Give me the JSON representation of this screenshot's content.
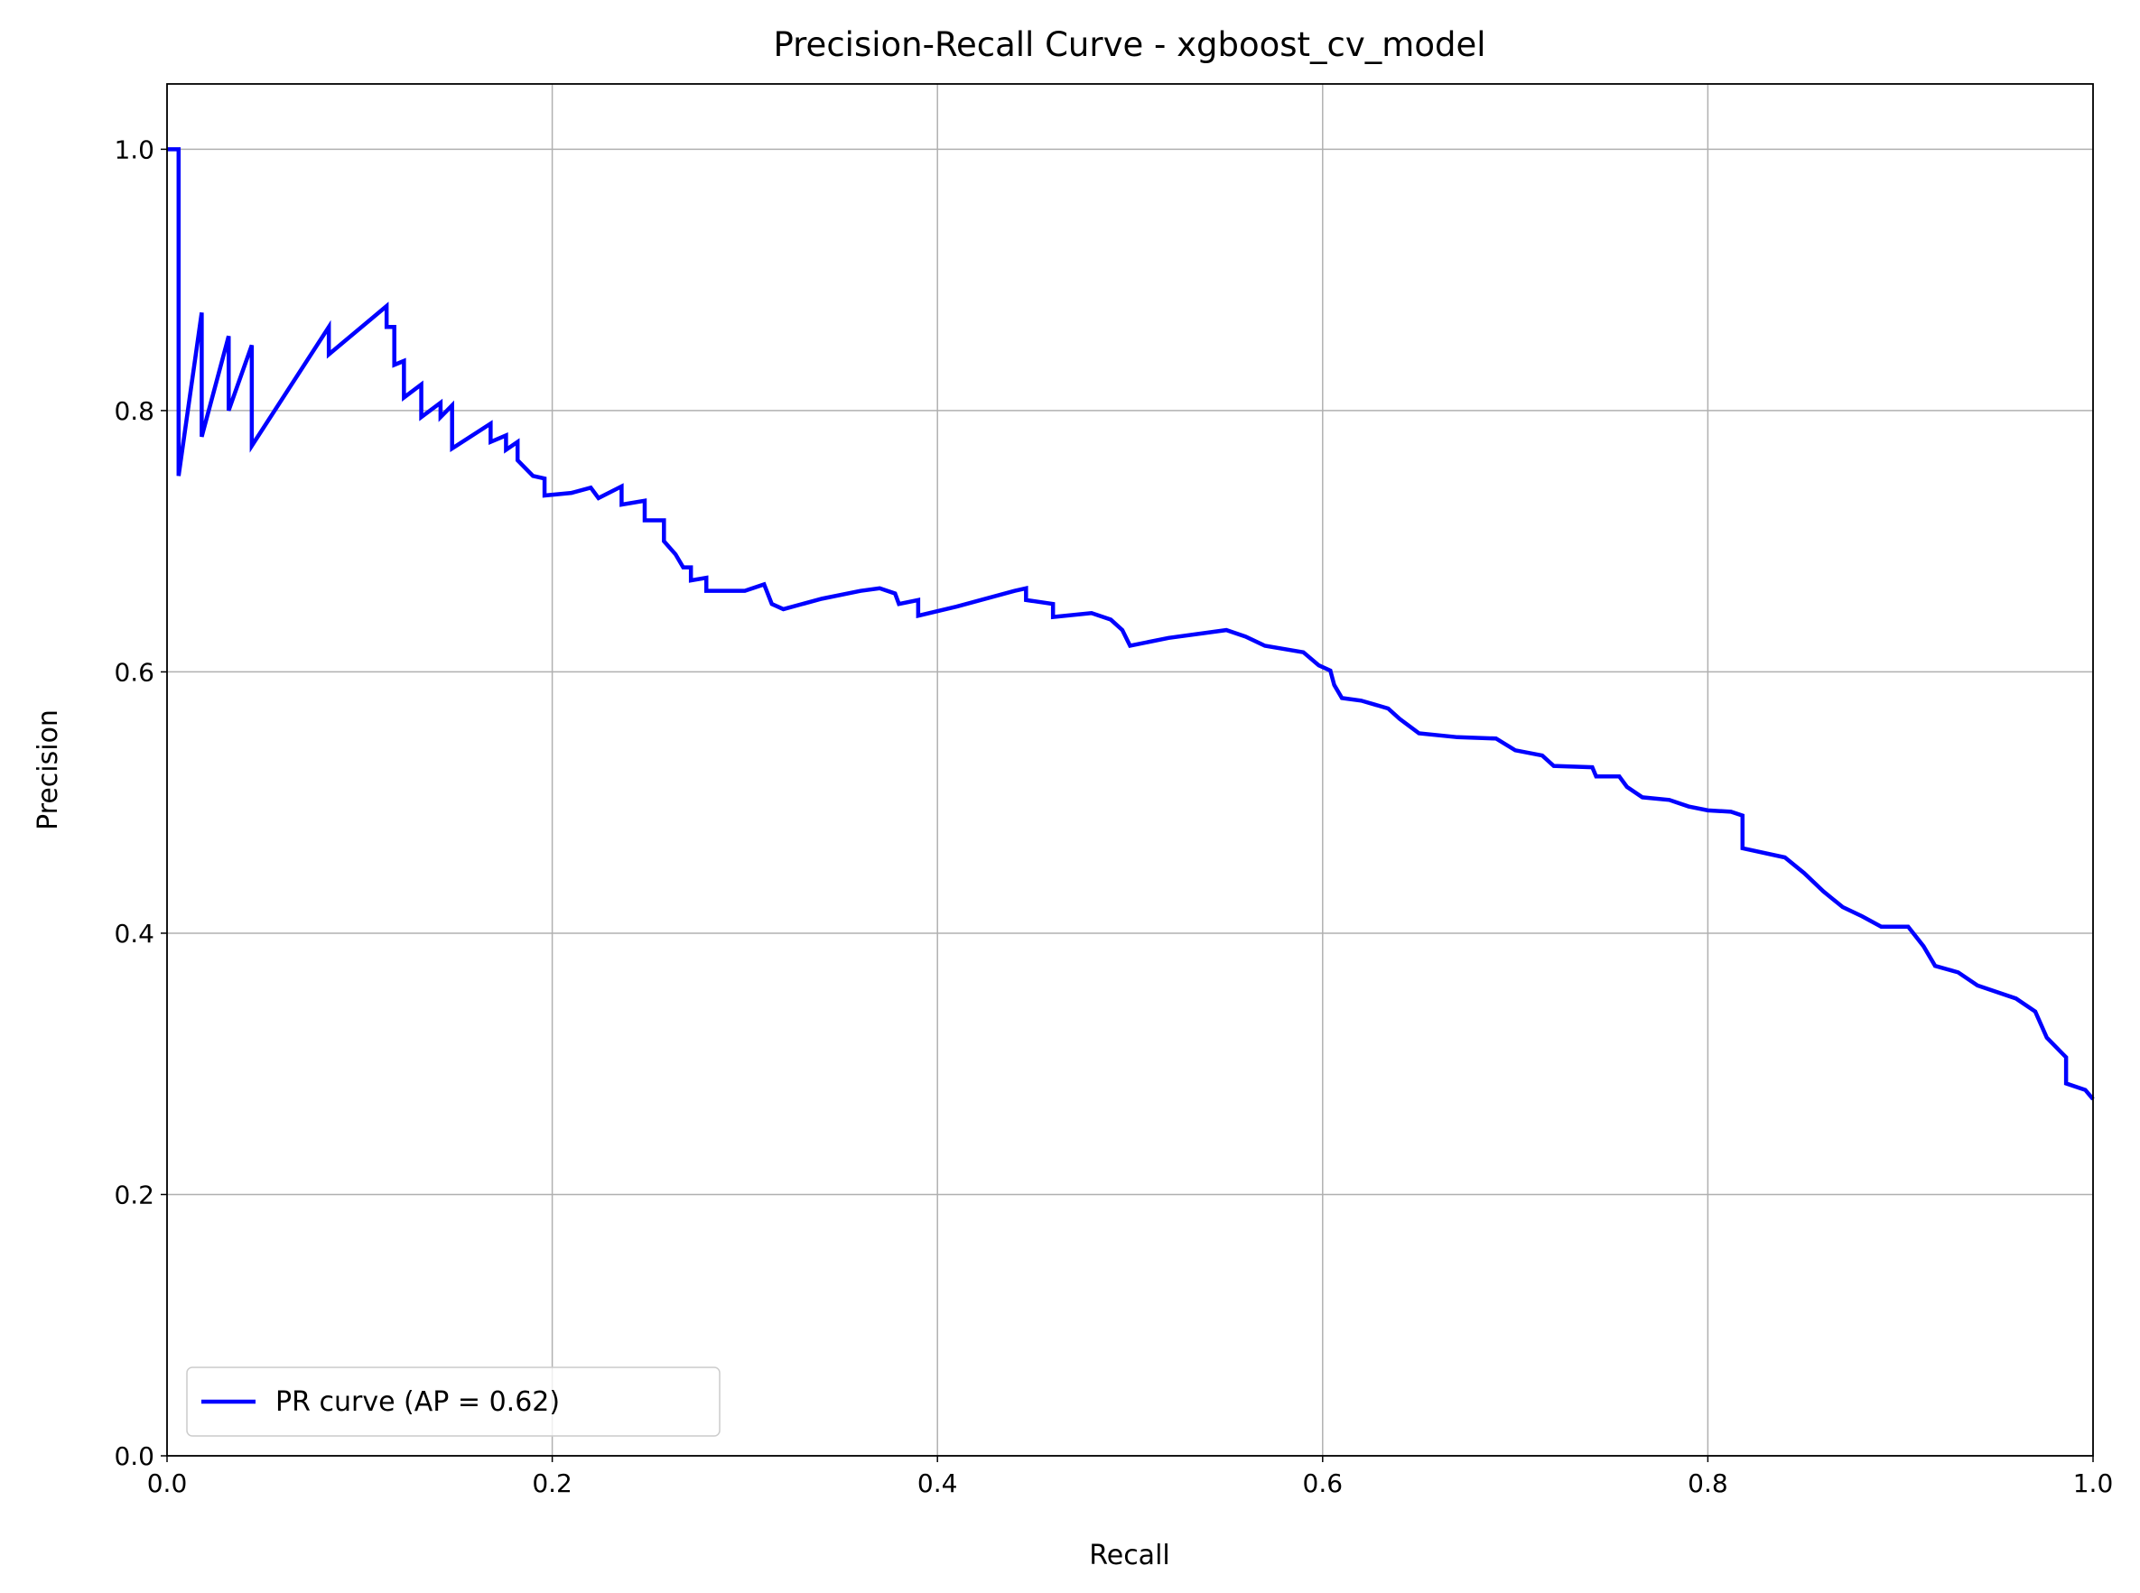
{
  "chart_data": {
    "type": "line",
    "title": "Precision-Recall Curve - xgboost_cv_model",
    "x_label": "Recall",
    "y_label": "Precision",
    "xlim": [
      0,
      1
    ],
    "ylim": [
      0,
      1.05
    ],
    "xticks": [
      {
        "value": 0,
        "label": "0.0"
      },
      0.2,
      0.4,
      0.6,
      0.8,
      {
        "value": 1,
        "label": "1.0"
      }
    ],
    "yticks": [
      {
        "value": 0,
        "label": "0.0"
      },
      0.2,
      0.4,
      0.6,
      0.8,
      {
        "value": 1,
        "label": "1.0"
      }
    ],
    "grid": true,
    "legend_position": "lower left",
    "x": [
      0,
      0.006,
      0.006,
      0.018,
      0.018,
      0.032,
      0.032,
      0.044,
      0.044,
      0.084,
      0.084,
      0.114,
      0.114,
      0.118,
      0.118,
      0.123,
      0.123,
      0.132,
      0.132,
      0.142,
      0.142,
      0.148,
      0.148,
      0.168,
      0.168,
      0.176,
      0.176,
      0.182,
      0.182,
      0.19,
      0.196,
      0.196,
      0.21,
      0.22,
      0.224,
      0.236,
      0.236,
      0.248,
      0.248,
      0.258,
      0.258,
      0.264,
      0.268,
      0.272,
      0.272,
      0.28,
      0.28,
      0.3,
      0.31,
      0.314,
      0.32,
      0.34,
      0.36,
      0.37,
      0.378,
      0.38,
      0.39,
      0.39,
      0.41,
      0.44,
      0.446,
      0.446,
      0.46,
      0.46,
      0.48,
      0.49,
      0.496,
      0.5,
      0.52,
      0.55,
      0.56,
      0.57,
      0.59,
      0.598,
      0.604,
      0.606,
      0.61,
      0.62,
      0.634,
      0.64,
      0.65,
      0.67,
      0.69,
      0.7,
      0.714,
      0.72,
      0.74,
      0.742,
      0.754,
      0.758,
      0.766,
      0.78,
      0.79,
      0.8,
      0.812,
      0.818,
      0.818,
      0.84,
      0.85,
      0.86,
      0.87,
      0.88,
      0.89,
      0.904,
      0.912,
      0.918,
      0.93,
      0.94,
      0.96,
      0.97,
      0.976,
      0.986,
      0.986,
      0.996,
      1.0
    ],
    "series": [
      {
        "name": "PR curve (AP = 0.62)",
        "color": "#0000ff",
        "values": [
          1.0,
          1.0,
          0.75,
          0.875,
          0.78,
          0.857,
          0.8,
          0.85,
          0.773,
          0.864,
          0.843,
          0.88,
          0.864,
          0.864,
          0.835,
          0.838,
          0.81,
          0.82,
          0.795,
          0.806,
          0.795,
          0.804,
          0.771,
          0.79,
          0.776,
          0.781,
          0.77,
          0.776,
          0.762,
          0.75,
          0.748,
          0.735,
          0.737,
          0.741,
          0.733,
          0.742,
          0.728,
          0.731,
          0.716,
          0.716,
          0.7,
          0.69,
          0.68,
          0.68,
          0.67,
          0.672,
          0.662,
          0.662,
          0.667,
          0.652,
          0.648,
          0.656,
          0.662,
          0.664,
          0.66,
          0.652,
          0.655,
          0.643,
          0.65,
          0.662,
          0.664,
          0.655,
          0.652,
          0.642,
          0.645,
          0.64,
          0.632,
          0.62,
          0.626,
          0.632,
          0.627,
          0.62,
          0.615,
          0.605,
          0.601,
          0.59,
          0.58,
          0.578,
          0.572,
          0.564,
          0.553,
          0.55,
          0.549,
          0.54,
          0.536,
          0.528,
          0.527,
          0.52,
          0.52,
          0.512,
          0.504,
          0.502,
          0.497,
          0.494,
          0.493,
          0.49,
          0.465,
          0.458,
          0.446,
          0.432,
          0.42,
          0.413,
          0.405,
          0.405,
          0.39,
          0.375,
          0.37,
          0.36,
          0.35,
          0.34,
          0.32,
          0.305,
          0.285,
          0.28,
          0.273
        ]
      }
    ]
  }
}
